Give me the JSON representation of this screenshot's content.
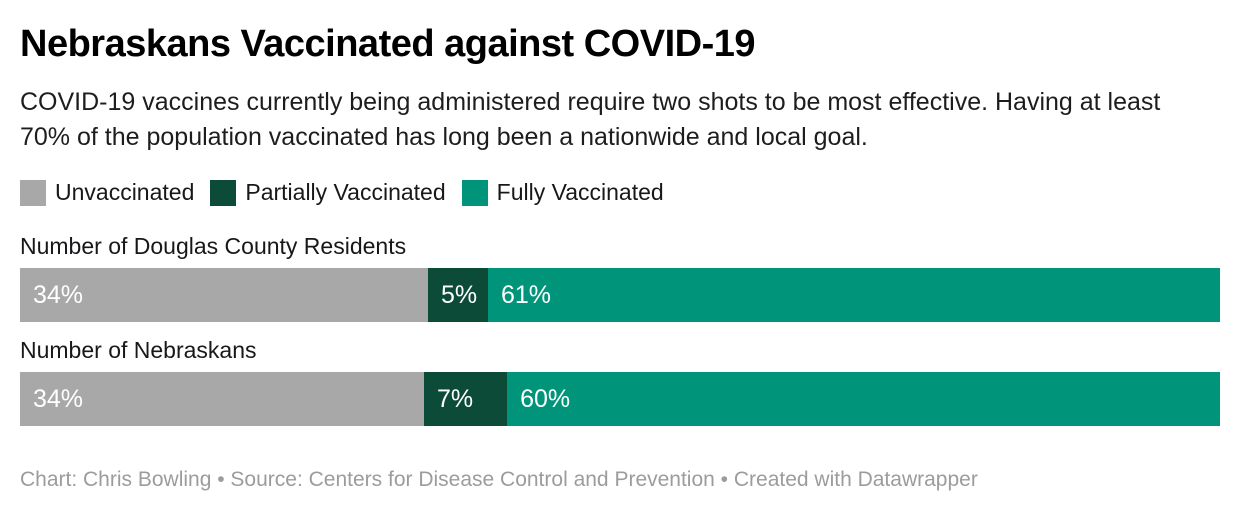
{
  "chart_data": {
    "type": "bar",
    "variant": "stacked-horizontal",
    "title": "Nebraskans Vaccinated against COVID-19",
    "description": "COVID-19 vaccines currently being administered require two shots to be most effective. Having at least 70% of the population vaccinated has long been a nationwide and local goal.",
    "unit": "%",
    "xlim": [
      0,
      100
    ],
    "grid": false,
    "legend_position": "top",
    "legend": [
      {
        "label": "Unvaccinated",
        "color": "#a8a8a8"
      },
      {
        "label": "Partially Vaccinated",
        "color": "#0d4b39"
      },
      {
        "label": "Fully Vaccinated",
        "color": "#00947a"
      }
    ],
    "rows": [
      {
        "label": "Number of Douglas County Residents",
        "segments": [
          {
            "name": "Unvaccinated",
            "value": 34,
            "display": "34%",
            "color": "#a8a8a8"
          },
          {
            "name": "Partially Vaccinated",
            "value": 5,
            "display": "5%",
            "color": "#0d4b39"
          },
          {
            "name": "Fully Vaccinated",
            "value": 61,
            "display": "61%",
            "color": "#00947a"
          }
        ]
      },
      {
        "label": "Number of Nebraskans",
        "segments": [
          {
            "name": "Unvaccinated",
            "value": 34,
            "display": "34%",
            "color": "#a8a8a8"
          },
          {
            "name": "Partially Vaccinated",
            "value": 7,
            "display": "7%",
            "color": "#0d4b39"
          },
          {
            "name": "Fully Vaccinated",
            "value": 60,
            "display": "60%",
            "color": "#00947a"
          }
        ]
      }
    ],
    "footer": "Chart: Chris Bowling • Source: Centers for Disease Control and Prevention • Created with Datawrapper"
  },
  "colors": {
    "background": "#ffffff",
    "title_text": "#000000",
    "body_text": "#1d1d1d",
    "label_text": "#18181b",
    "bar_value_text": "#ffffff",
    "footer_text": "#9c9c9c",
    "unvaccinated": "#a8a8a8",
    "partially_vaccinated": "#0d4b39",
    "fully_vaccinated": "#00947a"
  }
}
